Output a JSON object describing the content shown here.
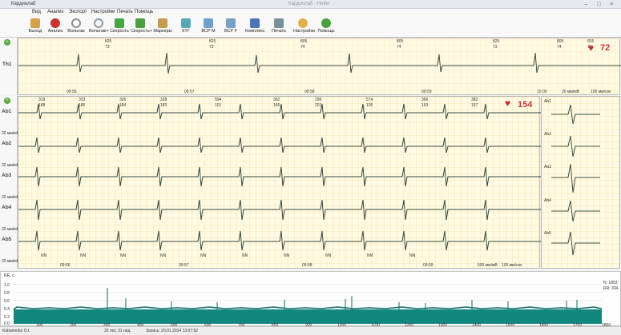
{
  "app": {
    "title": "Кардиолаб",
    "window_subtitle": "Кардиолаб - Holter"
  },
  "window_controls": {
    "minimize": "–",
    "maximize": "□",
    "close": "×"
  },
  "menu": [
    "Вид",
    "Анализ",
    "Экспорт",
    "Настройки",
    "Печать",
    "Помощь"
  ],
  "toolbar": [
    {
      "label": "Выход",
      "icon": "exit-icon",
      "color": "#d8a14a"
    },
    {
      "label": "Анализ",
      "icon": "heart-icon",
      "color": "#c9342f"
    },
    {
      "label": "Вольтаж",
      "icon": "search-icon",
      "color": "#8f8f8f"
    },
    {
      "label": "Вольтаж+",
      "icon": "zoom-in-icon",
      "color": "#8a9aa7"
    },
    {
      "label": "Скорость",
      "icon": "speed-icon",
      "color": "#45a543"
    },
    {
      "label": "Скорость+",
      "icon": "speed-plus-icon",
      "color": "#4c9f3f"
    },
    {
      "label": "Маркеры",
      "icon": "cross-icon",
      "color": "#c79a51"
    },
    {
      "label": "КТГ",
      "icon": "chart-icon",
      "color": "#58a7b6"
    },
    {
      "label": "ВСР М",
      "icon": "monitor-icon",
      "color": "#6fa0cb"
    },
    {
      "label": "ВСР F",
      "icon": "monitor-f-icon",
      "color": "#7c9fc5"
    },
    {
      "label": "Комплекс",
      "icon": "complex-icon",
      "color": "#4f75b9"
    },
    {
      "label": "Печать",
      "icon": "print-icon",
      "color": "#768f99"
    },
    {
      "label": "Настройки",
      "icon": "settings-icon",
      "color": "#e3ad4b"
    },
    {
      "label": "Помощь",
      "icon": "help-icon",
      "color": "#48a13a"
    }
  ],
  "top_panel": {
    "lead": "Th1",
    "hr": "72",
    "top_values": [
      [
        "825",
        "73"
      ],
      [
        "825",
        "73"
      ],
      [
        "805",
        "74"
      ],
      [
        "805",
        "74"
      ],
      [
        "825",
        "73"
      ],
      [
        "805",
        "74"
      ],
      [
        "815",
        "74"
      ]
    ],
    "times": [
      "09:56",
      "09:57",
      "09:58",
      "09:59",
      "10:00"
    ],
    "scale": "20 мм/мВ",
    "speed": "100 мм/сек"
  },
  "main_panel": {
    "hr": "154",
    "leads": [
      "Ab1",
      "Ab2",
      "Ab3",
      "Ab4",
      "Ab5"
    ],
    "top_values": [
      [
        "319",
        "188"
      ],
      [
        "323",
        "186"
      ],
      [
        "326",
        "184"
      ],
      [
        "328",
        "183"
      ],
      [
        "594",
        "101"
      ],
      [
        "362",
        "166"
      ],
      [
        "296",
        "201"
      ],
      [
        "574",
        "105"
      ],
      [
        "366",
        "163"
      ],
      [
        "382",
        "157"
      ]
    ],
    "mv_labels": [
      "20 мм/мВ",
      "20 мм/мВ",
      "20 мм/мВ",
      "20 мм/мВ",
      "20 мм/мВ"
    ],
    "markers": [
      "NN",
      "NN",
      "NN",
      "NN",
      "NN",
      "NN",
      "NN",
      "NN",
      "NN",
      "NN"
    ],
    "times": [
      "09:56",
      "09:57",
      "09:58",
      "09:59"
    ],
    "scale": "500 мм/мВ",
    "speed": "100 мм/сек"
  },
  "side_panel": {
    "leads": [
      "Ab1",
      "Ab2",
      "Ab3",
      "Ab4",
      "Ab5"
    ]
  },
  "trend": {
    "label": "RR, c",
    "y_ticks": [
      "1.0",
      "0.8",
      "0.6",
      "0.4",
      "0.2",
      "0.0"
    ],
    "x_ticks": [
      "100",
      "200",
      "300",
      "400",
      "500",
      "600",
      "700",
      "800",
      "900",
      "1000",
      "1100",
      "1200",
      "1300",
      "1400",
      "1500",
      "1600",
      "1700",
      "1800"
    ],
    "legend": [
      "N: 1853",
      "RR: 334"
    ]
  },
  "status": [
    "Kabanenko O.I.",
    "32 лет, 31 нед.",
    "Запись: 20.01.2014 13:07:52"
  ]
}
